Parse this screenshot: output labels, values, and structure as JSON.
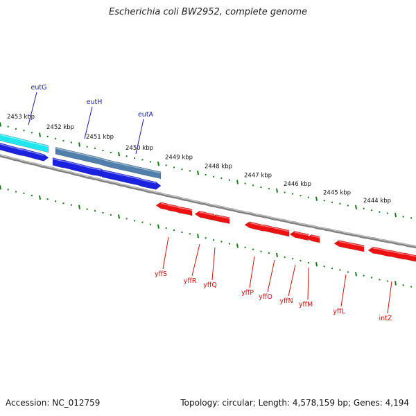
{
  "title": "Escherichia coli BW2952, complete genome",
  "footer": {
    "accession": "Accession: NC_012759",
    "summary": "Topology: circular; Length: 4,578,159 bp; Genes: 4,194"
  },
  "colors": {
    "backbone": "#808080",
    "tick": "#1a7a1a",
    "forward_gene_label": "#1a1aaa",
    "reverse_gene_label": "#cc1111",
    "cyan_gene": "#22e6ee",
    "steel_gene": "#4f7faa",
    "blue_gene": "#1a22e0",
    "red_gene": "#ee1111"
  },
  "scale": {
    "kbp_labels": [
      "2453 kbp",
      "2452 kbp",
      "2451 kbp",
      "2450 kbp",
      "2449 kbp",
      "2448 kbp",
      "2447 kbp",
      "2446 kbp",
      "2445 kbp",
      "2444 kbp"
    ]
  },
  "genes": {
    "forward": [
      "eutG",
      "eutH",
      "eutA"
    ],
    "reverse": [
      "yffS",
      "yffR",
      "yffQ",
      "yffP",
      "yffO",
      "yffN",
      "yffM",
      "yffL",
      "intZ"
    ]
  }
}
